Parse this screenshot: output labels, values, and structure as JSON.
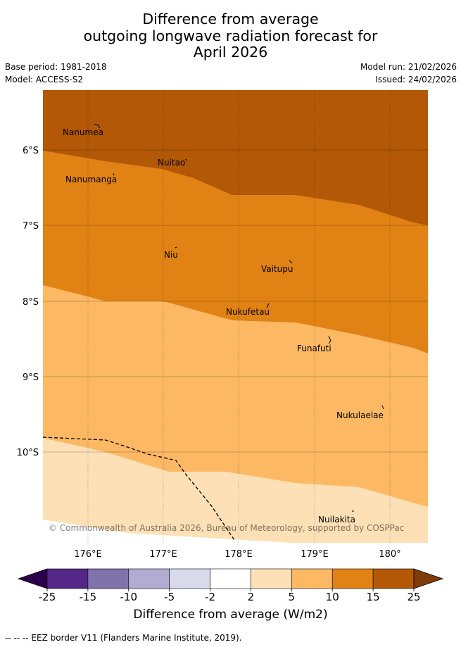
{
  "header": {
    "title_lines": [
      "Difference from average",
      "outgoing longwave radiation forecast for",
      "April 2026"
    ],
    "base_period": "Base period: 1981-2018",
    "model": "Model: ACCESS-S2",
    "model_run": "Model run: 21/02/2026",
    "issued": "Issued: 24/02/2026"
  },
  "map": {
    "lat_labels": [
      "6°S",
      "7°S",
      "8°S",
      "9°S",
      "10°S"
    ],
    "lon_labels": [
      "176°E",
      "177°E",
      "178°E",
      "179°E",
      "180°"
    ],
    "places": [
      "Nanumea",
      "Nuitao",
      "Nanumanga",
      "Niu",
      "Vaitupu",
      "Nukufetau",
      "Funafuti",
      "Nukulaelae",
      "Nuilakita"
    ],
    "copyright": "© Commonwealth of Australia 2026, Bureau of Meteorology, supported by COSPPac",
    "colors": {
      "c15_25": "#b35806",
      "c10_15": "#e08214",
      "c5_10": "#fdb863",
      "c2_5": "#fee0b6"
    }
  },
  "colorbar": {
    "ticks": [
      "-25",
      "-15",
      "-10",
      "-5",
      "-2",
      "2",
      "5",
      "10",
      "15",
      "25"
    ],
    "colors": [
      "#2d004b",
      "#542788",
      "#8073ac",
      "#b2abd2",
      "#d8daeb",
      "#ffffff",
      "#fee0b6",
      "#fdb863",
      "#e08214",
      "#b35806",
      "#7f3b08"
    ],
    "title": "Difference from average (W/m2)"
  },
  "legend": {
    "eez": "-- -- -- EEZ border V11 (Flanders Marine Institute, 2019)."
  }
}
